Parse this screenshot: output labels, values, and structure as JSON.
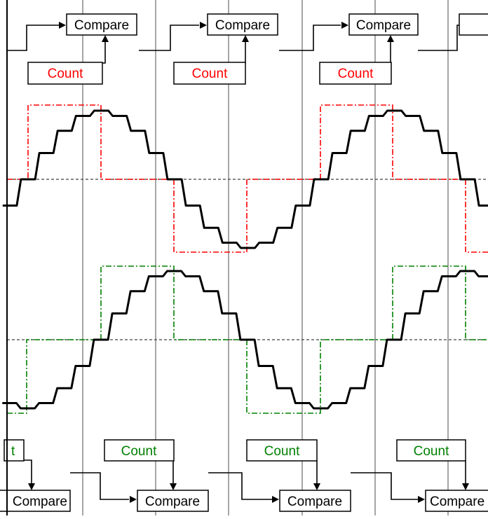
{
  "colors": {
    "background": "#ffffff",
    "grid_line": "#a6a6a6",
    "baseline_dashed": "#404040",
    "waveform": "#000000",
    "count_red": "#ff0000",
    "count_green": "#008000",
    "box_border": "#000000"
  },
  "top_row": {
    "compare_labels": [
      "Compare",
      "Compare",
      "Compare"
    ],
    "count_labels": [
      "Count",
      "Count",
      "Count"
    ]
  },
  "bottom_row": {
    "count_labels": [
      "t",
      "Count",
      "Count",
      "Count"
    ],
    "compare_labels": [
      "Compare",
      "Compare",
      "Compare",
      "Compare"
    ]
  }
}
